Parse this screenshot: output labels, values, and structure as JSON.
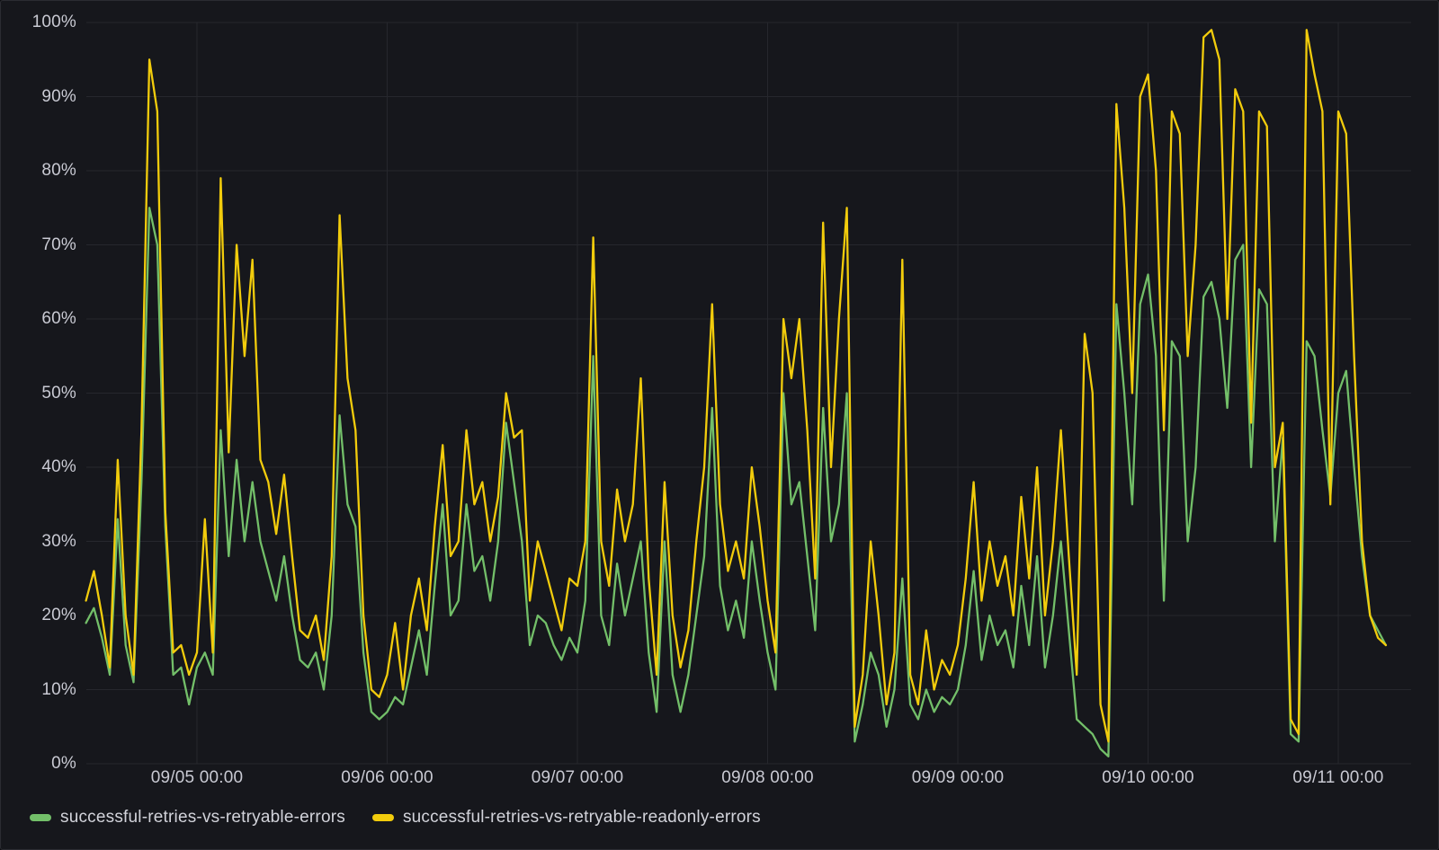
{
  "panel": {
    "background": "#16171c",
    "border_color": "#2b2c32",
    "grid_color": "#26272d",
    "tick_text_color": "#c9cad3"
  },
  "chart_data": {
    "type": "line",
    "title": "",
    "xlabel": "",
    "ylabel": "",
    "ylim": [
      0,
      100
    ],
    "grid": true,
    "legend_position": "bottom-left",
    "x_start": "09/04 10:00",
    "x_step": "1h",
    "y_ticks": [
      "0%",
      "10%",
      "20%",
      "30%",
      "40%",
      "50%",
      "60%",
      "70%",
      "80%",
      "90%",
      "100%"
    ],
    "x_ticks": [
      {
        "label": "09/05 00:00",
        "hour_index": 14
      },
      {
        "label": "09/06 00:00",
        "hour_index": 38
      },
      {
        "label": "09/07 00:00",
        "hour_index": 62
      },
      {
        "label": "09/08 00:00",
        "hour_index": 86
      },
      {
        "label": "09/09 00:00",
        "hour_index": 110
      },
      {
        "label": "09/10 00:00",
        "hour_index": 134
      },
      {
        "label": "09/11 00:00",
        "hour_index": 158
      }
    ],
    "series": [
      {
        "name": "successful-retries-vs-retryable-errors",
        "color": "#73BF69",
        "values": [
          19,
          21,
          17,
          12,
          33,
          16,
          11,
          38,
          75,
          70,
          32,
          12,
          13,
          8,
          13,
          15,
          12,
          45,
          28,
          41,
          30,
          38,
          30,
          26,
          22,
          28,
          20,
          14,
          13,
          15,
          10,
          20,
          47,
          35,
          32,
          15,
          7,
          6,
          7,
          9,
          8,
          13,
          18,
          12,
          24,
          35,
          20,
          22,
          35,
          26,
          28,
          22,
          30,
          46,
          38,
          30,
          16,
          20,
          19,
          16,
          14,
          17,
          15,
          22,
          55,
          20,
          16,
          27,
          20,
          25,
          30,
          15,
          7,
          30,
          12,
          7,
          12,
          20,
          28,
          48,
          24,
          18,
          22,
          17,
          30,
          22,
          15,
          10,
          50,
          35,
          38,
          28,
          18,
          48,
          30,
          35,
          50,
          3,
          8,
          15,
          12,
          5,
          10,
          25,
          8,
          6,
          10,
          7,
          9,
          8,
          10,
          16,
          26,
          14,
          20,
          16,
          18,
          13,
          24,
          16,
          28,
          13,
          20,
          30,
          18,
          6,
          5,
          4,
          2,
          1,
          62,
          50,
          35,
          62,
          66,
          55,
          22,
          57,
          55,
          30,
          40,
          63,
          65,
          60,
          48,
          68,
          70,
          40,
          64,
          62,
          30,
          44,
          4,
          3,
          57,
          55,
          45,
          36,
          50,
          53,
          40,
          28,
          20,
          18,
          16
        ]
      },
      {
        "name": "successful-retries-vs-retryable-readonly-errors",
        "color": "#F2CC0C",
        "values": [
          22,
          26,
          20,
          13,
          41,
          20,
          12,
          45,
          95,
          88,
          34,
          15,
          16,
          12,
          15,
          33,
          15,
          79,
          42,
          70,
          55,
          68,
          41,
          38,
          31,
          39,
          28,
          18,
          17,
          20,
          14,
          28,
          74,
          52,
          45,
          20,
          10,
          9,
          12,
          19,
          10,
          20,
          25,
          18,
          32,
          43,
          28,
          30,
          45,
          35,
          38,
          30,
          36,
          50,
          44,
          45,
          22,
          30,
          26,
          22,
          18,
          25,
          24,
          30,
          71,
          30,
          24,
          37,
          30,
          35,
          52,
          25,
          12,
          38,
          20,
          13,
          18,
          30,
          40,
          62,
          35,
          26,
          30,
          25,
          40,
          32,
          22,
          15,
          60,
          52,
          60,
          45,
          25,
          73,
          40,
          60,
          75,
          5,
          12,
          30,
          20,
          8,
          15,
          68,
          12,
          8,
          18,
          10,
          14,
          12,
          16,
          25,
          38,
          22,
          30,
          24,
          28,
          20,
          36,
          25,
          40,
          20,
          30,
          45,
          28,
          12,
          58,
          50,
          8,
          3,
          89,
          75,
          50,
          90,
          93,
          80,
          45,
          88,
          85,
          55,
          70,
          98,
          99,
          95,
          60,
          91,
          88,
          46,
          88,
          86,
          40,
          46,
          6,
          4,
          99,
          93,
          88,
          35,
          88,
          85,
          55,
          30,
          20,
          17,
          16
        ]
      }
    ]
  },
  "legend": {
    "item1_label": "successful-retries-vs-retryable-errors",
    "item2_label": "successful-retries-vs-retryable-readonly-errors"
  }
}
